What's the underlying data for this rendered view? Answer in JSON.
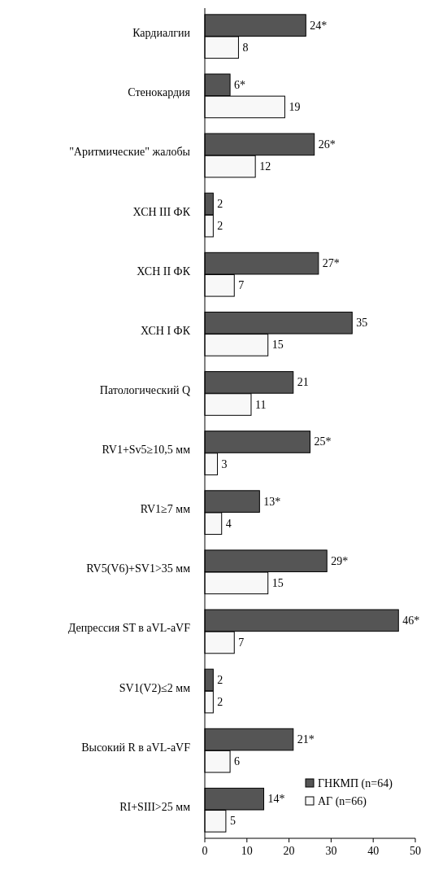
{
  "chart_data": {
    "type": "bar",
    "orientation": "horizontal",
    "categories": [
      "Кардиалгии",
      "Стенокардия",
      "\"Аритмические\" жалобы",
      "ХСН III ФК",
      "ХСН II ФК",
      "ХСН I ФК",
      "Патологический Q",
      "RV1+Sv5≥10,5 мм",
      "RV1≥7 мм",
      "RV5(V6)+SV1>35 мм",
      "Депрессия ST в aVL-aVF",
      "SV1(V2)≤2 мм",
      "Высокий R в aVL-aVF",
      "RI+SIII>25 мм"
    ],
    "series": [
      {
        "name": "ГНКМП (n=64)",
        "color": "#555555",
        "values": [
          24,
          6,
          26,
          2,
          27,
          35,
          21,
          25,
          13,
          29,
          46,
          2,
          21,
          14
        ],
        "value_labels": [
          "24*",
          "6*",
          "26*",
          "2",
          "27*",
          "35",
          "21",
          "25*",
          "13*",
          "29*",
          "46*",
          "2",
          "21*",
          "14*"
        ]
      },
      {
        "name": "АГ (n=66)",
        "color": "#f8f8f8",
        "values": [
          8,
          19,
          12,
          2,
          7,
          15,
          11,
          3,
          4,
          15,
          7,
          2,
          6,
          5
        ],
        "value_labels": [
          "8",
          "19",
          "12",
          "2",
          "7",
          "15",
          "11",
          "3",
          "4",
          "15",
          "7",
          "2",
          "6",
          "5"
        ]
      }
    ],
    "xlim": [
      0,
      50
    ],
    "xticks": [
      0,
      10,
      20,
      30,
      40,
      50
    ],
    "grid": false,
    "legend": "right"
  }
}
